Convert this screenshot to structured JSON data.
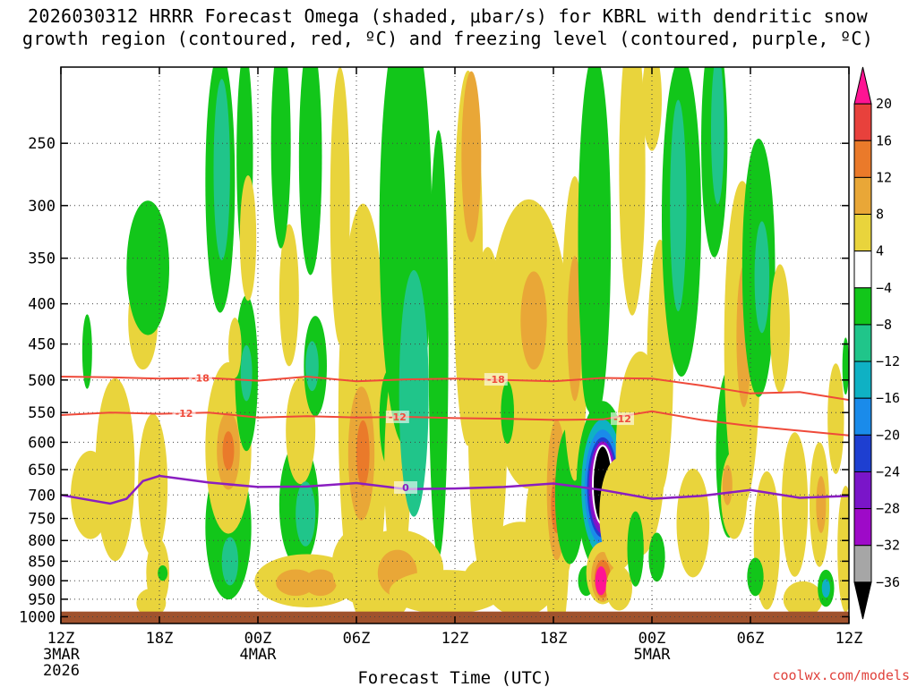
{
  "chart_data": {
    "type": "heatmap",
    "title_line1": "2026030312 HRRR Forecast Omega (shaded, μbar/s) for KBRL with dendritic snow",
    "title_line2": "growth region (contoured, red, ºC) and freezing level (contoured, purple, ºC)",
    "xlabel": "Forecast Time (UTC)",
    "credit": "coolwx.com/models",
    "x_ticks": [
      {
        "hour": 0,
        "label": "12Z",
        "sub1": "3MAR",
        "sub2": "2026"
      },
      {
        "hour": 6,
        "label": "18Z",
        "sub1": "",
        "sub2": ""
      },
      {
        "hour": 12,
        "label": "00Z",
        "sub1": "4MAR",
        "sub2": ""
      },
      {
        "hour": 18,
        "label": "06Z",
        "sub1": "",
        "sub2": ""
      },
      {
        "hour": 24,
        "label": "12Z",
        "sub1": "",
        "sub2": ""
      },
      {
        "hour": 30,
        "label": "18Z",
        "sub1": "",
        "sub2": ""
      },
      {
        "hour": 36,
        "label": "00Z",
        "sub1": "5MAR",
        "sub2": ""
      },
      {
        "hour": 42,
        "label": "06Z",
        "sub1": "",
        "sub2": ""
      },
      {
        "hour": 48,
        "label": "12Z",
        "sub1": "",
        "sub2": ""
      }
    ],
    "x_range_hours": [
      0,
      48
    ],
    "y_ticks_hpa": [
      250,
      300,
      350,
      400,
      450,
      500,
      550,
      600,
      650,
      700,
      750,
      800,
      850,
      900,
      950,
      1000
    ],
    "y_range_hpa": [
      200,
      1020
    ],
    "colorbar": {
      "labels": [
        "20",
        "16",
        "12",
        "8",
        "4",
        "−4",
        "−8",
        "−12",
        "−16",
        "−20",
        "−24",
        "−28",
        "−32",
        "−36"
      ],
      "colors": [
        "#ff1493",
        "#e8413c",
        "#ea7a2a",
        "#e9a737",
        "#e9d43c",
        "#ffffff",
        "#12c61a",
        "#20c58a",
        "#0fb1c4",
        "#1a8bea",
        "#1e3fd1",
        "#7a15c9",
        "#9e0ac8",
        "#a6a6a6",
        "#000000"
      ]
    },
    "series": [
      {
        "name": "dendritic growth -18C",
        "label": "-18",
        "color": "#ef4a3a",
        "hours": [
          0,
          3,
          6,
          9,
          12,
          15,
          18,
          21,
          24,
          27,
          30,
          33,
          36,
          39,
          42,
          45,
          48
        ],
        "pressure_hpa": [
          495,
          496,
          498,
          497,
          501,
          495,
          502,
          499,
          498,
          500,
          502,
          497,
          498,
          508,
          520,
          518,
          530
        ]
      },
      {
        "name": "dendritic growth -12C",
        "label": "-12",
        "color": "#ef4a3a",
        "hours": [
          0,
          3,
          6,
          9,
          12,
          15,
          18,
          21,
          24,
          27,
          30,
          33,
          36,
          39,
          42,
          45,
          48
        ],
        "pressure_hpa": [
          554,
          550,
          552,
          550,
          558,
          556,
          558,
          557,
          559,
          560,
          562,
          561,
          548,
          562,
          572,
          580,
          588
        ]
      },
      {
        "name": "freezing level 0C",
        "label": "0",
        "color": "#8a1ec0",
        "hours": [
          0,
          2,
          3,
          4,
          5,
          6,
          9,
          12,
          15,
          18,
          21,
          24,
          27,
          30,
          33,
          36,
          39,
          42,
          45,
          48
        ],
        "pressure_hpa": [
          700,
          712,
          718,
          708,
          672,
          662,
          675,
          684,
          683,
          676,
          688,
          687,
          684,
          677,
          690,
          708,
          702,
          690,
          706,
          702
        ]
      }
    ],
    "contour_labels": [
      {
        "text": "-18",
        "hour": 8.5,
        "pressure_hpa": 497,
        "color": "#ef4a3a"
      },
      {
        "text": "-18",
        "hour": 26.5,
        "pressure_hpa": 499,
        "color": "#ef4a3a"
      },
      {
        "text": "-12",
        "hour": 7.5,
        "pressure_hpa": 551,
        "color": "#ef4a3a"
      },
      {
        "text": "-12",
        "hour": 20.5,
        "pressure_hpa": 557,
        "color": "#ef4a3a"
      },
      {
        "text": "-12",
        "hour": 34.2,
        "pressure_hpa": 560,
        "color": "#ef4a3a"
      },
      {
        "text": "0",
        "hour": 21.0,
        "pressure_hpa": 685,
        "color": "#8a1ec0"
      }
    ],
    "omega_features": [
      {
        "h": 1.8,
        "p": 700,
        "dh": 1.2,
        "dp": 90,
        "v": 5
      },
      {
        "h": 1.6,
        "p": 460,
        "dh": 0.3,
        "dp": 50,
        "v": -5
      },
      {
        "h": 3.3,
        "p": 650,
        "dh": 1.2,
        "dp": 170,
        "v": 5
      },
      {
        "h": 5.0,
        "p": 420,
        "dh": 0.9,
        "dp": 60,
        "v": 5
      },
      {
        "h": 5.3,
        "p": 360,
        "dh": 1.3,
        "dp": 70,
        "v": -5
      },
      {
        "h": 5.6,
        "p": 680,
        "dh": 0.9,
        "dp": 140,
        "v": 5
      },
      {
        "h": 5.9,
        "p": 880,
        "dh": 0.7,
        "dp": 90,
        "v": 5
      },
      {
        "h": 5.5,
        "p": 960,
        "dh": 0.9,
        "dp": 40,
        "v": 5
      },
      {
        "h": 6.2,
        "p": 880,
        "dh": 0.3,
        "dp": 20,
        "v": -5
      },
      {
        "h": 9.7,
        "p": 280,
        "dh": 0.9,
        "dp": 150,
        "v": -6
      },
      {
        "h": 9.8,
        "p": 270,
        "dh": 0.5,
        "dp": 70,
        "v": -10
      },
      {
        "h": 11.2,
        "p": 260,
        "dh": 0.5,
        "dp": 110,
        "v": -5
      },
      {
        "h": 10.2,
        "p": 770,
        "dh": 1.4,
        "dp": 160,
        "v": -6
      },
      {
        "h": 10.3,
        "p": 850,
        "dh": 0.5,
        "dp": 60,
        "v": -10
      },
      {
        "h": 10.2,
        "p": 610,
        "dh": 1.4,
        "dp": 150,
        "v": 6
      },
      {
        "h": 10.2,
        "p": 615,
        "dh": 0.7,
        "dp": 70,
        "v": 10
      },
      {
        "h": 10.2,
        "p": 615,
        "dh": 0.35,
        "dp": 35,
        "v": 14
      },
      {
        "h": 11.3,
        "p": 490,
        "dh": 0.7,
        "dp": 110,
        "v": -6
      },
      {
        "h": 11.3,
        "p": 490,
        "dh": 0.35,
        "dp": 40,
        "v": -10
      },
      {
        "h": 10.6,
        "p": 455,
        "dh": 0.4,
        "dp": 40,
        "v": 5
      },
      {
        "h": 11.4,
        "p": 330,
        "dh": 0.5,
        "dp": 60,
        "v": 5
      },
      {
        "h": 13.9,
        "p": 390,
        "dh": 0.6,
        "dp": 80,
        "v": 5
      },
      {
        "h": 13.4,
        "p": 250,
        "dh": 0.6,
        "dp": 120,
        "v": -5
      },
      {
        "h": 15.2,
        "p": 260,
        "dh": 0.7,
        "dp": 140,
        "v": -6
      },
      {
        "h": 14.5,
        "p": 720,
        "dh": 1.2,
        "dp": 130,
        "v": -6
      },
      {
        "h": 14.6,
        "p": 580,
        "dh": 0.9,
        "dp": 90,
        "v": 5
      },
      {
        "h": 15.5,
        "p": 480,
        "dh": 0.7,
        "dp": 70,
        "v": -6
      },
      {
        "h": 15.3,
        "p": 480,
        "dh": 0.4,
        "dp": 35,
        "v": -10
      },
      {
        "h": 17.0,
        "p": 300,
        "dh": 0.6,
        "dp": 150,
        "v": 5
      },
      {
        "h": 15.0,
        "p": 900,
        "dh": 3.2,
        "dp": 70,
        "v": 6
      },
      {
        "h": 14.3,
        "p": 905,
        "dh": 1.2,
        "dp": 35,
        "v": 9
      },
      {
        "h": 15.8,
        "p": 905,
        "dh": 1.0,
        "dp": 35,
        "v": 9
      },
      {
        "h": 14.9,
        "p": 740,
        "dh": 0.6,
        "dp": 70,
        "v": -10
      },
      {
        "h": 18.4,
        "p": 550,
        "dh": 1.5,
        "dp": 300,
        "v": 6
      },
      {
        "h": 18.3,
        "p": 620,
        "dh": 0.8,
        "dp": 120,
        "v": 9
      },
      {
        "h": 18.4,
        "p": 620,
        "dh": 0.4,
        "dp": 60,
        "v": 13
      },
      {
        "h": 18.5,
        "p": 860,
        "dh": 2.0,
        "dp": 100,
        "v": 5
      },
      {
        "h": 20.0,
        "p": 560,
        "dh": 0.6,
        "dp": 80,
        "v": -6
      },
      {
        "h": 19.5,
        "p": 960,
        "dh": 1.6,
        "dp": 50,
        "v": 6
      },
      {
        "h": 20.5,
        "p": 650,
        "dh": 0.8,
        "dp": 200,
        "v": 5
      },
      {
        "h": 21.0,
        "p": 320,
        "dh": 1.6,
        "dp": 400,
        "v": -6
      },
      {
        "h": 21.5,
        "p": 520,
        "dh": 0.9,
        "dp": 180,
        "v": -8
      },
      {
        "h": 21.5,
        "p": 470,
        "dh": 0.45,
        "dp": 60,
        "v": -11
      },
      {
        "h": 23.0,
        "p": 450,
        "dh": 0.6,
        "dp": 250,
        "v": -5
      },
      {
        "h": 20.5,
        "p": 870,
        "dh": 2.8,
        "dp": 100,
        "v": 6
      },
      {
        "h": 20.5,
        "p": 880,
        "dh": 1.2,
        "dp": 60,
        "v": 9
      },
      {
        "h": 23.5,
        "p": 930,
        "dh": 3.5,
        "dp": 60,
        "v": 5
      },
      {
        "h": 24.8,
        "p": 350,
        "dh": 0.9,
        "dp": 250,
        "v": 6
      },
      {
        "h": 25.0,
        "p": 260,
        "dh": 0.6,
        "dp": 70,
        "v": 9
      },
      {
        "h": 26.0,
        "p": 560,
        "dh": 1.2,
        "dp": 260,
        "v": 5
      },
      {
        "h": 28.5,
        "p": 450,
        "dh": 2.5,
        "dp": 180,
        "v": 5
      },
      {
        "h": 28.8,
        "p": 420,
        "dh": 0.8,
        "dp": 60,
        "v": 9
      },
      {
        "h": 27.2,
        "p": 550,
        "dh": 0.4,
        "dp": 50,
        "v": -5
      },
      {
        "h": 28.0,
        "p": 870,
        "dh": 2.5,
        "dp": 120,
        "v": 6
      },
      {
        "h": 26.0,
        "p": 900,
        "dh": 1.5,
        "dp": 60,
        "v": 6
      },
      {
        "h": 29.8,
        "p": 760,
        "dh": 1.5,
        "dp": 160,
        "v": 5
      },
      {
        "h": 30.2,
        "p": 640,
        "dh": 0.9,
        "dp": 320,
        "v": 6
      },
      {
        "h": 30.2,
        "p": 690,
        "dh": 0.6,
        "dp": 140,
        "v": 9
      },
      {
        "h": 30.2,
        "p": 720,
        "dh": 0.35,
        "dp": 60,
        "v": 14
      },
      {
        "h": 31.0,
        "p": 700,
        "dh": 0.9,
        "dp": 140,
        "v": -6
      },
      {
        "h": 31.3,
        "p": 430,
        "dh": 0.8,
        "dp": 180,
        "v": 5
      },
      {
        "h": 31.3,
        "p": 430,
        "dh": 0.45,
        "dp": 90,
        "v": 9
      },
      {
        "h": 32.2,
        "p": 460,
        "dh": 0.5,
        "dp": 80,
        "v": -5
      },
      {
        "h": 32.5,
        "p": 330,
        "dh": 1.0,
        "dp": 260,
        "v": -6
      },
      {
        "h": 32.0,
        "p": 900,
        "dh": 0.5,
        "dp": 40,
        "v": -5
      },
      {
        "h": 33.0,
        "p": 685,
        "dh": 1.6,
        "dp": 170,
        "v": -7
      },
      {
        "h": 33.0,
        "p": 685,
        "dh": 1.3,
        "dp": 135,
        "v": -12
      },
      {
        "h": 33.0,
        "p": 685,
        "dh": 1.1,
        "dp": 115,
        "v": -17
      },
      {
        "h": 33.0,
        "p": 685,
        "dh": 0.95,
        "dp": 100,
        "v": -21
      },
      {
        "h": 33.0,
        "p": 685,
        "dh": 0.85,
        "dp": 92,
        "v": -26
      },
      {
        "h": 33.0,
        "p": 680,
        "dh": 0.75,
        "dp": 85,
        "v": -30
      },
      {
        "h": 33.0,
        "p": 680,
        "dh": 0.6,
        "dp": 78,
        "v": -40
      },
      {
        "h": 33.0,
        "p": 880,
        "dh": 1.0,
        "dp": 80,
        "v": 6
      },
      {
        "h": 33.0,
        "p": 890,
        "dh": 0.7,
        "dp": 65,
        "v": 10
      },
      {
        "h": 33.0,
        "p": 895,
        "dh": 0.5,
        "dp": 50,
        "v": 14
      },
      {
        "h": 32.9,
        "p": 900,
        "dh": 0.35,
        "dp": 38,
        "v": 22
      },
      {
        "h": 34.0,
        "p": 740,
        "dh": 1.2,
        "dp": 120,
        "v": 5
      },
      {
        "h": 34.0,
        "p": 920,
        "dh": 0.8,
        "dp": 60,
        "v": 5
      },
      {
        "h": 35.3,
        "p": 620,
        "dh": 1.5,
        "dp": 180,
        "v": 5
      },
      {
        "h": 35.0,
        "p": 820,
        "dh": 0.5,
        "dp": 90,
        "v": -6
      },
      {
        "h": 34.8,
        "p": 270,
        "dh": 0.8,
        "dp": 200,
        "v": 5
      },
      {
        "h": 36.0,
        "p": 220,
        "dh": 0.6,
        "dp": 50,
        "v": 5
      },
      {
        "h": 36.5,
        "p": 480,
        "dh": 0.8,
        "dp": 170,
        "v": 5
      },
      {
        "h": 37.8,
        "p": 310,
        "dh": 1.2,
        "dp": 200,
        "v": -6
      },
      {
        "h": 37.6,
        "p": 300,
        "dh": 0.5,
        "dp": 90,
        "v": -10
      },
      {
        "h": 36.3,
        "p": 840,
        "dh": 0.5,
        "dp": 60,
        "v": -6
      },
      {
        "h": 38.5,
        "p": 760,
        "dh": 1.0,
        "dp": 120,
        "v": 5
      },
      {
        "h": 39.8,
        "p": 250,
        "dh": 0.8,
        "dp": 140,
        "v": -6
      },
      {
        "h": 40.0,
        "p": 240,
        "dh": 0.4,
        "dp": 70,
        "v": -10
      },
      {
        "h": 40.7,
        "p": 620,
        "dh": 0.8,
        "dp": 150,
        "v": -6
      },
      {
        "h": 41.5,
        "p": 450,
        "dh": 1.1,
        "dp": 200,
        "v": 5
      },
      {
        "h": 41.6,
        "p": 440,
        "dh": 0.45,
        "dp": 90,
        "v": 9
      },
      {
        "h": 41.0,
        "p": 700,
        "dh": 0.8,
        "dp": 90,
        "v": 6
      },
      {
        "h": 40.6,
        "p": 680,
        "dh": 0.3,
        "dp": 40,
        "v": 11
      },
      {
        "h": 42.5,
        "p": 360,
        "dh": 1.0,
        "dp": 130,
        "v": -6
      },
      {
        "h": 42.7,
        "p": 370,
        "dh": 0.45,
        "dp": 60,
        "v": -10
      },
      {
        "h": 43.0,
        "p": 800,
        "dh": 0.8,
        "dp": 160,
        "v": 5
      },
      {
        "h": 42.3,
        "p": 890,
        "dh": 0.5,
        "dp": 50,
        "v": -6
      },
      {
        "h": 43.8,
        "p": 430,
        "dh": 0.6,
        "dp": 80,
        "v": 5
      },
      {
        "h": 44.7,
        "p": 720,
        "dh": 0.8,
        "dp": 150,
        "v": 5
      },
      {
        "h": 45.2,
        "p": 950,
        "dh": 1.2,
        "dp": 50,
        "v": 5
      },
      {
        "h": 46.2,
        "p": 720,
        "dh": 0.6,
        "dp": 130,
        "v": 6
      },
      {
        "h": 46.3,
        "p": 720,
        "dh": 0.3,
        "dp": 60,
        "v": 9
      },
      {
        "h": 46.6,
        "p": 920,
        "dh": 0.5,
        "dp": 50,
        "v": -6
      },
      {
        "h": 46.6,
        "p": 920,
        "dh": 0.25,
        "dp": 25,
        "v": -12
      },
      {
        "h": 47.8,
        "p": 820,
        "dh": 0.5,
        "dp": 150,
        "v": 5
      },
      {
        "h": 47.8,
        "p": 480,
        "dh": 0.2,
        "dp": 40,
        "v": -5
      },
      {
        "h": 47.2,
        "p": 560,
        "dh": 0.5,
        "dp": 90,
        "v": 5
      }
    ]
  }
}
